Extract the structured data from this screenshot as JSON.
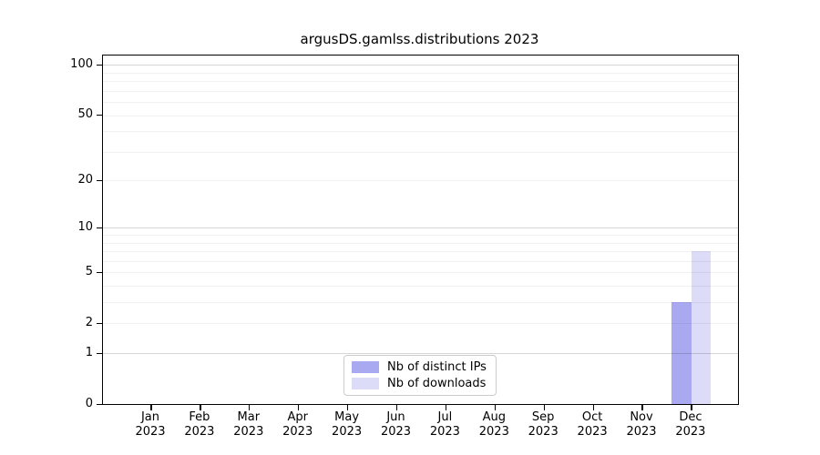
{
  "chart_data": {
    "type": "bar",
    "title": "argusDS.gamlss.distributions 2023",
    "categories": [
      "Jan",
      "Feb",
      "Mar",
      "Apr",
      "May",
      "Jun",
      "Jul",
      "Aug",
      "Sep",
      "Oct",
      "Nov",
      "Dec"
    ],
    "category_year_label": "2023",
    "series": [
      {
        "name": "Nb of distinct IPs",
        "color": "#a9a9f1",
        "values": [
          0,
          0,
          0,
          0,
          0,
          0,
          0,
          0,
          0,
          0,
          0,
          3
        ]
      },
      {
        "name": "Nb of downloads",
        "color": "#dcdcf8",
        "values": [
          0,
          0,
          0,
          0,
          0,
          0,
          0,
          0,
          0,
          0,
          0,
          7
        ]
      }
    ],
    "xlabel": "",
    "ylabel": "",
    "y_scale": "log1p",
    "ylim": [
      0,
      114
    ],
    "y_ticks": [
      0,
      1,
      2,
      5,
      10,
      20,
      50,
      100
    ],
    "y_major_gridlines": [
      1,
      10,
      100
    ],
    "y_minor_gridlines": [
      2,
      3,
      4,
      5,
      6,
      7,
      8,
      9,
      20,
      30,
      40,
      50,
      60,
      70,
      80,
      90
    ],
    "grid": true,
    "legend_position": "lower center",
    "axis_color": "#000000",
    "background_color": "#ffffff"
  }
}
